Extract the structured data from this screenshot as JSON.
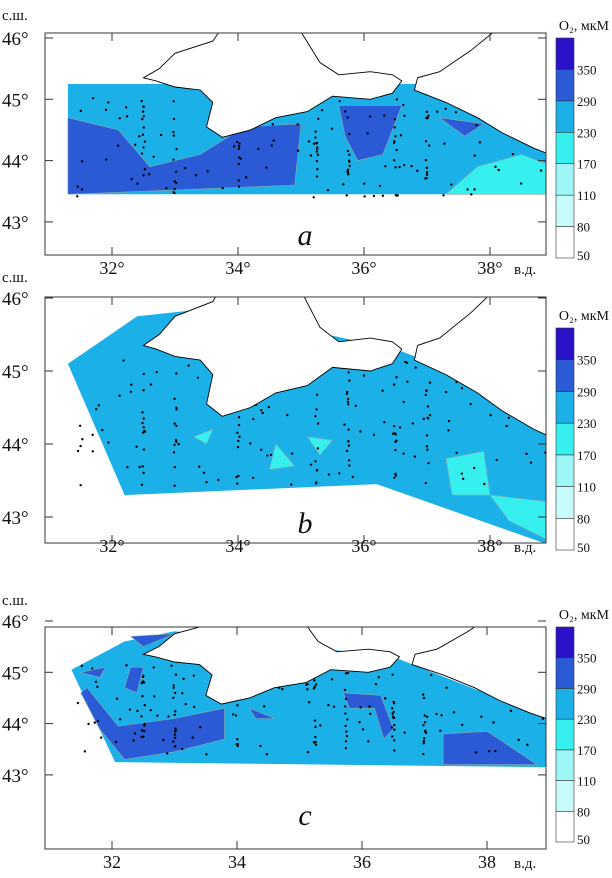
{
  "figure": {
    "lat_unit_label": "с.ш.",
    "lon_unit_label": "в.д.",
    "colorbar_title": "O₂, мкМ",
    "colorbar_levels": [
      "50",
      "80",
      "110",
      "170",
      "230",
      "290",
      "350"
    ],
    "colorbar_colors": [
      "#ffffff",
      "#c8fbfb",
      "#9ef6f6",
      "#36f0f0",
      "#1cb0e8",
      "#2a5ad6",
      "#2a12c8"
    ],
    "lat_ticks": [
      "43°",
      "44°",
      "45°",
      "46°"
    ],
    "colors": {
      "land": "#ffffff",
      "coast": "#000000",
      "station": "#000000"
    }
  },
  "panels": [
    {
      "label": "a",
      "lon_ticks": [
        "32°",
        "34°",
        "36°",
        "38°"
      ]
    },
    {
      "label": "b",
      "lon_ticks": [
        "32°",
        "34°",
        "36°",
        "38°"
      ]
    },
    {
      "label": "c",
      "lon_ticks": [
        "32",
        "34",
        "36",
        "38"
      ]
    }
  ]
}
